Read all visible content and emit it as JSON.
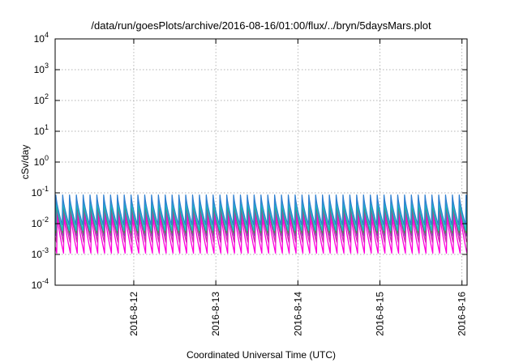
{
  "chart_data": {
    "type": "line",
    "title": "/data/run/goesPlots/archive/2016-08-16/01:00/flux/../bryn/5daysMars.plot",
    "xlabel": "Coordinated Universal Time (UTC)",
    "ylabel": "cSv/day",
    "y_scale": "log",
    "ylim": [
      0.0001,
      10000
    ],
    "xlim": [
      "2016-08-11 01:00",
      "2016-08-16 01:30"
    ],
    "grid": true,
    "legend": "none",
    "y_ticks": [
      {
        "base": "10",
        "exp": "-4"
      },
      {
        "base": "10",
        "exp": "-3"
      },
      {
        "base": "10",
        "exp": "-2"
      },
      {
        "base": "10",
        "exp": "-1"
      },
      {
        "base": "10",
        "exp": "0"
      },
      {
        "base": "10",
        "exp": "1"
      },
      {
        "base": "10",
        "exp": "2"
      },
      {
        "base": "10",
        "exp": "3"
      },
      {
        "base": "10",
        "exp": "4"
      }
    ],
    "x_ticks": [
      {
        "label": "2016-8-12",
        "value": "2016-08-12 00:00"
      },
      {
        "label": "2016-8-13",
        "value": "2016-08-13 00:00"
      },
      {
        "label": "2016-8-14",
        "value": "2016-08-14 00:00"
      },
      {
        "label": "2016-8-15",
        "value": "2016-08-15 00:00"
      },
      {
        "label": "2016-8-16",
        "value": "2016-08-16 00:00"
      }
    ],
    "cycle_hours": 2,
    "series": [
      {
        "color": "#b8002b",
        "peak": 0.12,
        "trough": 0.008,
        "phase": 0.0
      },
      {
        "color": "#1e3ad6",
        "peak": 0.1,
        "trough": 0.011,
        "phase": 0.05
      },
      {
        "color": "#2f7fd0",
        "peak": 0.085,
        "trough": 0.009,
        "phase": 0.1
      },
      {
        "color": "#18c4c4",
        "peak": 0.06,
        "trough": 0.006,
        "phase": 0.14
      },
      {
        "color": "#3fa04a",
        "peak": 0.05,
        "trough": 0.005,
        "phase": 0.18
      },
      {
        "color": "#8a3fb3",
        "peak": 0.045,
        "trough": 0.004,
        "phase": 0.22
      },
      {
        "color": "#cc2fb0",
        "peak": 0.035,
        "trough": 0.0025,
        "phase": 0.26
      },
      {
        "color": "#ff00dd",
        "peak": 0.02,
        "trough": 0.0011,
        "phase": 0.3
      }
    ]
  }
}
